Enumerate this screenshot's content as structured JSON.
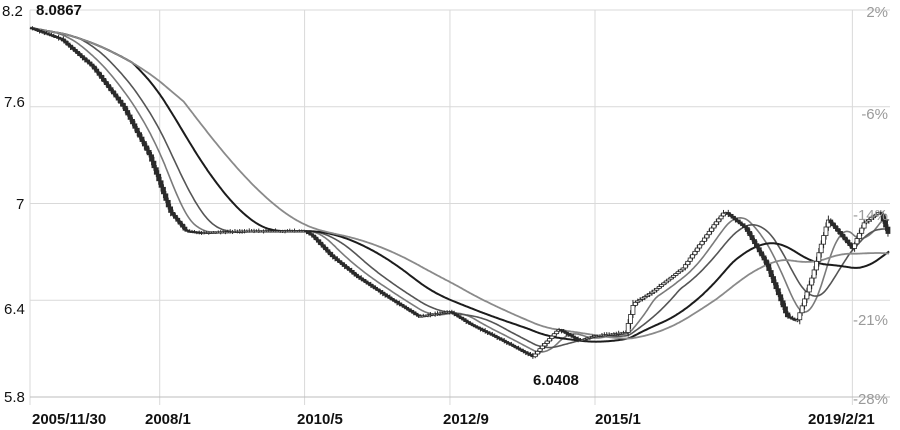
{
  "chart_data": {
    "type": "candlestick",
    "title": "",
    "xlabel": "",
    "ylabel": "",
    "grid": true,
    "legend": "none",
    "y_axis": {
      "range": [
        5.8,
        8.2
      ],
      "ticks": [
        "8.2",
        "7.6",
        "7",
        "6.4",
        "5.8"
      ]
    },
    "y2_axis": {
      "range": [
        -28,
        2
      ],
      "ticks": [
        "2%",
        "-6%",
        "-14%",
        "-21%",
        "-28%"
      ]
    },
    "x_axis": {
      "range": [
        "2005-11-30",
        "2019-09-30"
      ],
      "ticks": [
        "2005/11/30",
        "2008/1",
        "2010/5",
        "2012/9",
        "2015/1",
        "2019/2/21"
      ]
    },
    "annotations": {
      "max": "8.0867",
      "min": "6.0408"
    },
    "price_path": [
      [
        "2005-11-30",
        8.09
      ],
      [
        "2006-06-01",
        8.02
      ],
      [
        "2006-12-01",
        7.85
      ],
      [
        "2007-06-01",
        7.6
      ],
      [
        "2007-11-01",
        7.3
      ],
      [
        "2008-03-01",
        6.95
      ],
      [
        "2008-06-01",
        6.83
      ],
      [
        "2008-09-01",
        6.82
      ],
      [
        "2009-06-01",
        6.83
      ],
      [
        "2010-05-01",
        6.83
      ],
      [
        "2010-06-15",
        6.8
      ],
      [
        "2010-10-01",
        6.68
      ],
      [
        "2011-03-01",
        6.55
      ],
      [
        "2011-09-01",
        6.42
      ],
      [
        "2012-03-01",
        6.3
      ],
      [
        "2012-09-01",
        6.33
      ],
      [
        "2013-01-01",
        6.25
      ],
      [
        "2013-06-01",
        6.17
      ],
      [
        "2014-01-01",
        6.05
      ],
      [
        "2014-03-01",
        6.12
      ],
      [
        "2014-06-01",
        6.22
      ],
      [
        "2014-10-01",
        6.15
      ],
      [
        "2015-01-01",
        6.18
      ],
      [
        "2015-07-01",
        6.2
      ],
      [
        "2015-08-15",
        6.38
      ],
      [
        "2015-12-01",
        6.45
      ],
      [
        "2016-06-01",
        6.6
      ],
      [
        "2016-12-01",
        6.87
      ],
      [
        "2017-02-01",
        6.95
      ],
      [
        "2017-06-01",
        6.85
      ],
      [
        "2017-10-01",
        6.63
      ],
      [
        "2018-02-01",
        6.3
      ],
      [
        "2018-04-01",
        6.27
      ],
      [
        "2018-07-01",
        6.55
      ],
      [
        "2018-10-01",
        6.9
      ],
      [
        "2019-02-21",
        6.72
      ],
      [
        "2019-05-01",
        6.88
      ],
      [
        "2019-08-01",
        6.95
      ],
      [
        "2019-09-30",
        6.78
      ]
    ],
    "moving_averages": [
      {
        "window_months": 5,
        "color": "#7a7a7a",
        "width": 1.6
      },
      {
        "window_months": 10,
        "color": "#555555",
        "width": 1.6
      },
      {
        "window_months": 20,
        "color": "#1c1c1c",
        "width": 2.0
      },
      {
        "window_months": 30,
        "color": "#8a8a8a",
        "width": 1.8
      }
    ]
  }
}
